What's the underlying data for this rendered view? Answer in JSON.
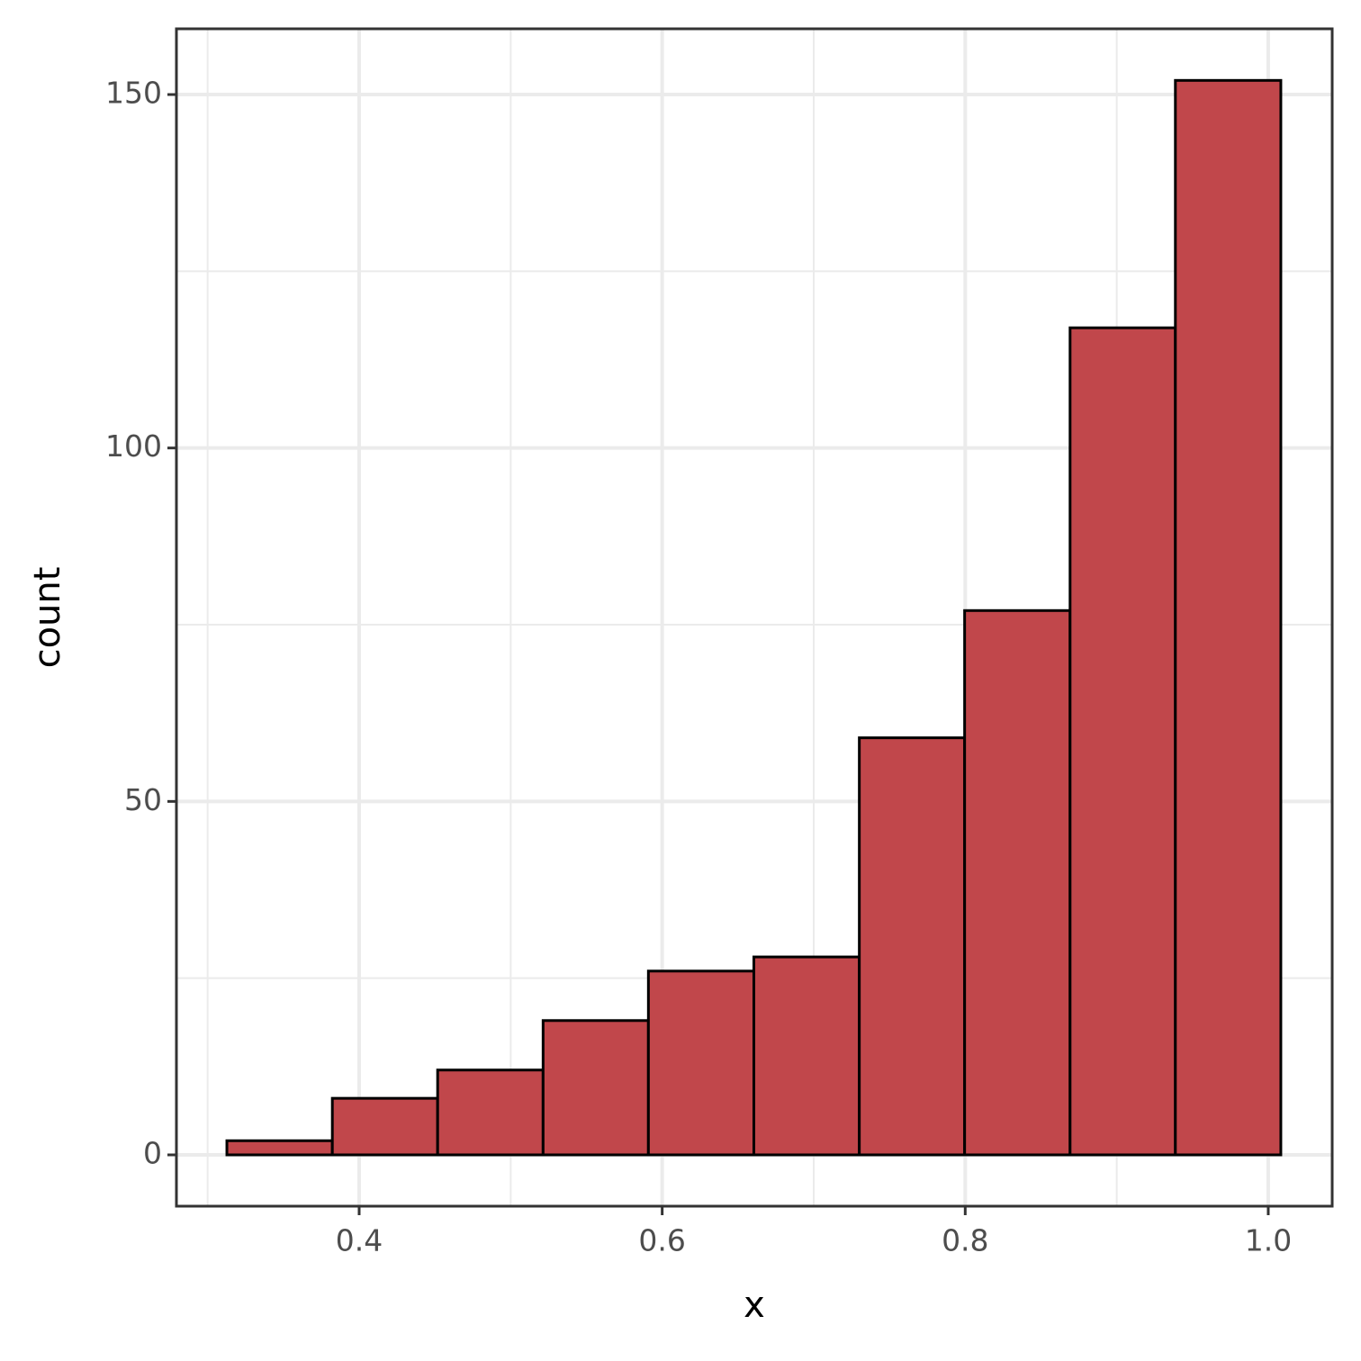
{
  "chart_data": {
    "type": "histogram",
    "x_label": "x",
    "y_label": "count",
    "bins": [
      0.3127,
      0.3823,
      0.4518,
      0.5214,
      0.5909,
      0.6605,
      0.7301,
      0.7996,
      0.8692,
      0.9387,
      1.0083
    ],
    "values": [
      2,
      8,
      12,
      19,
      26,
      28,
      59,
      77,
      117,
      152
    ],
    "color": "#c1474b",
    "edge_color": "#000000",
    "xlim": [
      0.2794,
      1.0422
    ],
    "xticks": [
      {
        "value": 0.4,
        "label": "0.4"
      },
      {
        "value": 0.6,
        "label": "0.6"
      },
      {
        "value": 0.8,
        "label": "0.8"
      },
      {
        "value": 1.0,
        "label": "1.0"
      }
    ],
    "ylim": [
      -7.26,
      159.3
    ],
    "yticks": [
      0,
      50,
      100,
      150
    ],
    "x_minor_grid": [
      0.3,
      0.5,
      0.7,
      0.9
    ],
    "y_minor_grid": [
      25,
      75,
      125
    ],
    "grid": true
  }
}
